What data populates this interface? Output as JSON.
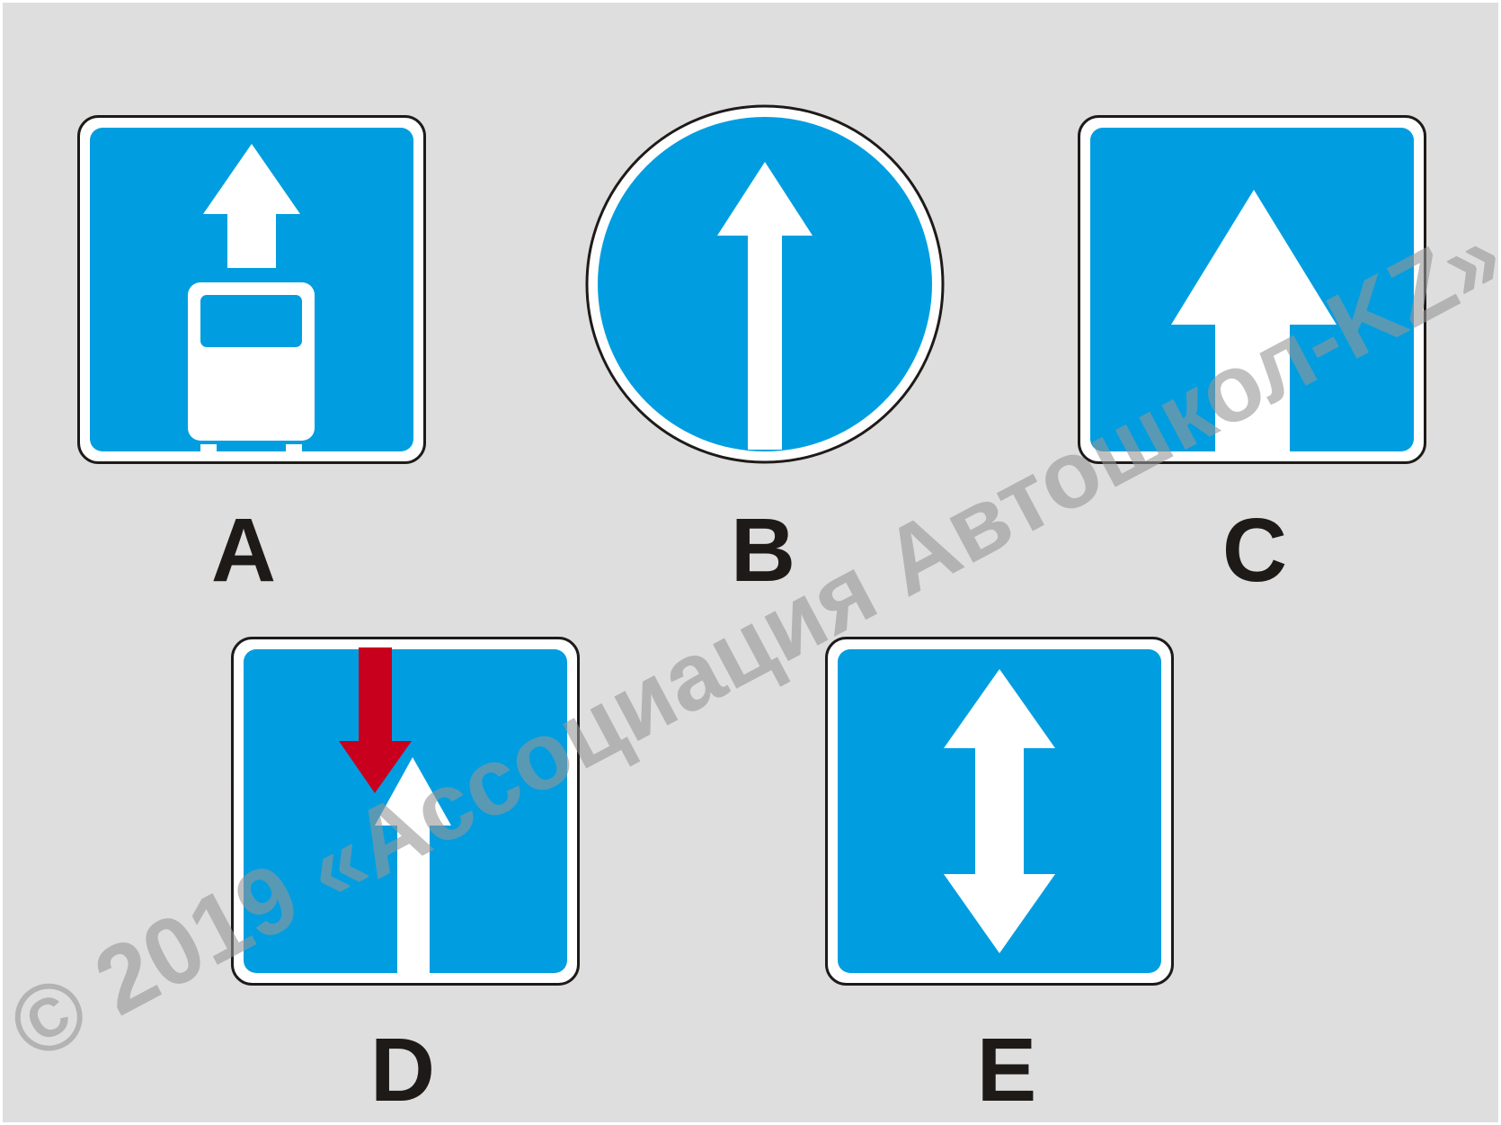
{
  "colors": {
    "background": "#dedede",
    "sign_blue": "#009ee0",
    "sign_border": "#1e1a18",
    "arrow_white": "#ffffff",
    "arrow_red": "#c8001e",
    "label": "#1e1a18",
    "watermark": "#969696"
  },
  "signs": [
    {
      "label": "A",
      "icon": "bus-lane-sign"
    },
    {
      "label": "B",
      "icon": "straight-ahead-round-sign"
    },
    {
      "label": "C",
      "icon": "one-way-road-sign"
    },
    {
      "label": "D",
      "icon": "lane-without-oncoming-priority-sign"
    },
    {
      "label": "E",
      "icon": "two-way-traffic-sign"
    }
  ],
  "watermark": "© 2019 «Ассоциация Автошкол-KZ»"
}
